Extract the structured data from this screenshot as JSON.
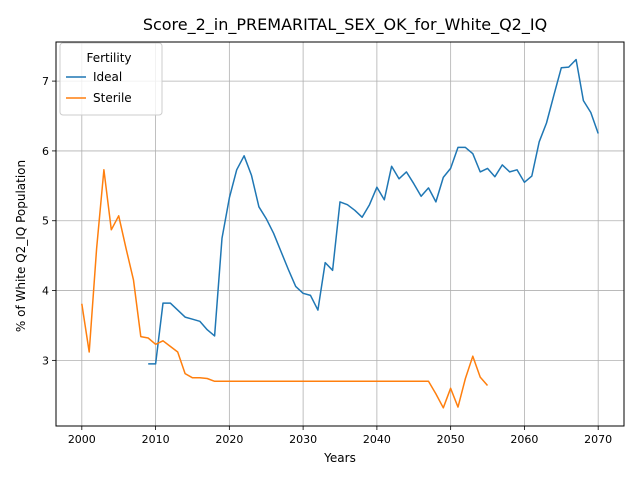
{
  "chart_data": {
    "type": "line",
    "title": "Score_2_in_PREMARITAL_SEX_OK_for_White_Q2_IQ",
    "xlabel": "Years",
    "ylabel": "% of White Q2_IQ Population",
    "xlim": [
      1996.5,
      2073.5
    ],
    "ylim": [
      2.06,
      7.56
    ],
    "xticks": [
      2000,
      2010,
      2020,
      2030,
      2040,
      2050,
      2060,
      2070
    ],
    "yticks": [
      3,
      4,
      5,
      6,
      7
    ],
    "grid": true,
    "legend": {
      "title": "Fertility",
      "placement": "top-left"
    },
    "series": [
      {
        "name": "Ideal",
        "color": "#1f77b4",
        "points": [
          [
            2009,
            2.95
          ],
          [
            2010,
            2.95
          ],
          [
            2011,
            3.82
          ],
          [
            2012,
            3.82
          ],
          [
            2013,
            3.72
          ],
          [
            2014,
            3.62
          ],
          [
            2015,
            3.59
          ],
          [
            2016,
            3.56
          ],
          [
            2017,
            3.44
          ],
          [
            2018,
            3.35
          ],
          [
            2019,
            4.75
          ],
          [
            2020,
            5.33
          ],
          [
            2021,
            5.73
          ],
          [
            2022,
            5.93
          ],
          [
            2023,
            5.65
          ],
          [
            2024,
            5.2
          ],
          [
            2025,
            5.03
          ],
          [
            2026,
            4.82
          ],
          [
            2027,
            4.56
          ],
          [
            2028,
            4.3
          ],
          [
            2029,
            4.06
          ],
          [
            2030,
            3.96
          ],
          [
            2031,
            3.93
          ],
          [
            2032,
            3.72
          ],
          [
            2033,
            4.4
          ],
          [
            2034,
            4.29
          ],
          [
            2035,
            5.27
          ],
          [
            2036,
            5.23
          ],
          [
            2037,
            5.15
          ],
          [
            2038,
            5.05
          ],
          [
            2039,
            5.23
          ],
          [
            2040,
            5.48
          ],
          [
            2041,
            5.3
          ],
          [
            2042,
            5.78
          ],
          [
            2043,
            5.6
          ],
          [
            2044,
            5.7
          ],
          [
            2045,
            5.53
          ],
          [
            2046,
            5.35
          ],
          [
            2047,
            5.47
          ],
          [
            2048,
            5.27
          ],
          [
            2049,
            5.62
          ],
          [
            2050,
            5.75
          ],
          [
            2051,
            6.05
          ],
          [
            2052,
            6.05
          ],
          [
            2053,
            5.96
          ],
          [
            2054,
            5.7
          ],
          [
            2055,
            5.75
          ],
          [
            2056,
            5.63
          ],
          [
            2057,
            5.8
          ],
          [
            2058,
            5.7
          ],
          [
            2059,
            5.73
          ],
          [
            2060,
            5.55
          ],
          [
            2061,
            5.64
          ],
          [
            2062,
            6.13
          ],
          [
            2063,
            6.4
          ],
          [
            2064,
            6.8
          ],
          [
            2065,
            7.19
          ],
          [
            2066,
            7.2
          ],
          [
            2067,
            7.31
          ],
          [
            2068,
            6.72
          ],
          [
            2069,
            6.55
          ],
          [
            2070,
            6.25
          ]
        ]
      },
      {
        "name": "Sterile",
        "color": "#ff7f0e",
        "points": [
          [
            2000,
            3.81
          ],
          [
            2001,
            3.12
          ],
          [
            2002,
            4.6
          ],
          [
            2003,
            5.73
          ],
          [
            2004,
            4.87
          ],
          [
            2005,
            5.07
          ],
          [
            2006,
            4.6
          ],
          [
            2007,
            4.15
          ],
          [
            2008,
            3.34
          ],
          [
            2009,
            3.32
          ],
          [
            2010,
            3.23
          ],
          [
            2011,
            3.28
          ],
          [
            2012,
            3.2
          ],
          [
            2013,
            3.12
          ],
          [
            2014,
            2.81
          ],
          [
            2015,
            2.75
          ],
          [
            2016,
            2.75
          ],
          [
            2017,
            2.74
          ],
          [
            2018,
            2.7
          ],
          [
            2019,
            2.7
          ],
          [
            2020,
            2.7
          ],
          [
            2025,
            2.7
          ],
          [
            2030,
            2.7
          ],
          [
            2035,
            2.7
          ],
          [
            2040,
            2.7
          ],
          [
            2045,
            2.7
          ],
          [
            2047,
            2.7
          ],
          [
            2048,
            2.52
          ],
          [
            2049,
            2.32
          ],
          [
            2050,
            2.6
          ],
          [
            2051,
            2.33
          ],
          [
            2052,
            2.74
          ],
          [
            2053,
            3.06
          ],
          [
            2054,
            2.76
          ],
          [
            2055,
            2.64
          ]
        ]
      }
    ]
  }
}
